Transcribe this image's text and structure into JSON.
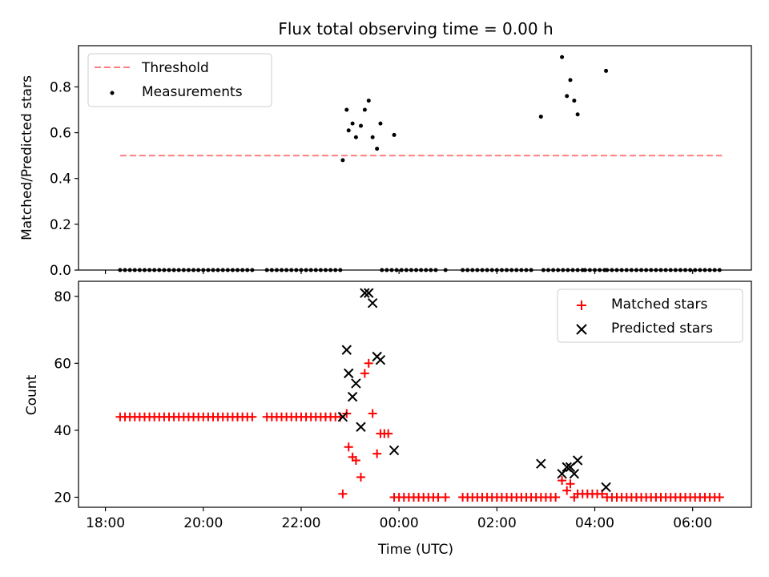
{
  "chart_data": [
    {
      "type": "scatter",
      "title": "Flux total observing time = 0.00 h",
      "xlabel": "",
      "ylabel": "Matched/Predicted stars",
      "xlim_hours": [
        17.45,
        31.2
      ],
      "ylim": [
        0,
        0.98
      ],
      "yticks": [
        0.0,
        0.2,
        0.4,
        0.6,
        0.8
      ],
      "ytick_labels": [
        "0.0",
        "0.2",
        "0.4",
        "0.6",
        "0.8"
      ],
      "legend_position": "top-left",
      "threshold": {
        "name": "Threshold",
        "value": 0.5,
        "x_range": [
          18.3,
          30.6
        ],
        "color": "#ff7f7f"
      },
      "series": [
        {
          "name": "Measurements",
          "color": "#000000",
          "zero_runs": [
            [
              18.3,
              21.05,
              0.1
            ],
            [
              21.3,
              22.8,
              0.1
            ],
            [
              23.65,
              24.8,
              0.1
            ],
            [
              25.3,
              26.75,
              0.1
            ],
            [
              26.95,
              27.75,
              0.1
            ],
            [
              27.8,
              28.2,
              0.1
            ],
            [
              28.25,
              30.6,
              0.1
            ]
          ],
          "points": [
            [
              22.85,
              0.48
            ],
            [
              22.93,
              0.7
            ],
            [
              22.97,
              0.61
            ],
            [
              23.05,
              0.64
            ],
            [
              23.12,
              0.58
            ],
            [
              23.22,
              0.63
            ],
            [
              23.3,
              0.7
            ],
            [
              23.38,
              0.74
            ],
            [
              23.46,
              0.58
            ],
            [
              23.55,
              0.53
            ],
            [
              23.62,
              0.64
            ],
            [
              23.9,
              0.59
            ],
            [
              24.95,
              0.0
            ],
            [
              26.9,
              0.67
            ],
            [
              27.33,
              0.93
            ],
            [
              27.43,
              0.76
            ],
            [
              27.5,
              0.83
            ],
            [
              27.58,
              0.74
            ],
            [
              27.65,
              0.68
            ],
            [
              28.23,
              0.87
            ]
          ]
        }
      ]
    },
    {
      "type": "scatter",
      "title": "",
      "xlabel": "Time (UTC)",
      "ylabel": "Count",
      "xlim_hours": [
        17.45,
        31.2
      ],
      "ylim": [
        17,
        84.5
      ],
      "yticks": [
        20,
        40,
        60,
        80
      ],
      "ytick_labels": [
        "20",
        "40",
        "60",
        "80"
      ],
      "xticks_hours": [
        18,
        20,
        22,
        24,
        26,
        28,
        30
      ],
      "xtick_labels": [
        "18:00",
        "20:00",
        "22:00",
        "00:00",
        "02:00",
        "04:00",
        "06:00"
      ],
      "legend_position": "top-right",
      "series": [
        {
          "name": "Matched stars",
          "marker": "plus",
          "color": "#ff0000",
          "runs": [
            [
              18.3,
              21.05,
              0.1,
              44
            ],
            [
              21.3,
              22.8,
              0.1,
              44
            ],
            [
              23.9,
              24.8,
              0.1,
              20
            ],
            [
              25.3,
              27.25,
              0.1,
              20
            ],
            [
              27.75,
              28.15,
              0.1,
              21
            ],
            [
              28.25,
              30.6,
              0.1,
              20
            ]
          ],
          "points": [
            [
              22.85,
              21
            ],
            [
              22.93,
              45
            ],
            [
              22.97,
              35
            ],
            [
              23.05,
              32
            ],
            [
              23.12,
              31
            ],
            [
              23.22,
              26
            ],
            [
              23.3,
              57
            ],
            [
              23.38,
              60
            ],
            [
              23.46,
              45
            ],
            [
              23.55,
              33
            ],
            [
              23.62,
              39
            ],
            [
              23.7,
              39
            ],
            [
              23.78,
              39
            ],
            [
              24.95,
              20
            ],
            [
              27.33,
              25
            ],
            [
              27.43,
              22
            ],
            [
              27.5,
              24
            ],
            [
              27.58,
              20
            ],
            [
              27.65,
              21
            ]
          ]
        },
        {
          "name": "Predicted stars",
          "marker": "x",
          "color": "#000000",
          "points": [
            [
              22.85,
              44
            ],
            [
              22.93,
              64
            ],
            [
              22.97,
              57
            ],
            [
              23.05,
              50
            ],
            [
              23.12,
              54
            ],
            [
              23.22,
              41
            ],
            [
              23.3,
              81
            ],
            [
              23.38,
              81
            ],
            [
              23.46,
              78
            ],
            [
              23.55,
              62
            ],
            [
              23.62,
              61
            ],
            [
              23.9,
              34
            ],
            [
              26.9,
              30
            ],
            [
              27.33,
              27
            ],
            [
              27.43,
              29
            ],
            [
              27.5,
              29
            ],
            [
              27.58,
              27
            ],
            [
              27.65,
              31
            ],
            [
              28.23,
              23
            ]
          ]
        }
      ]
    }
  ]
}
